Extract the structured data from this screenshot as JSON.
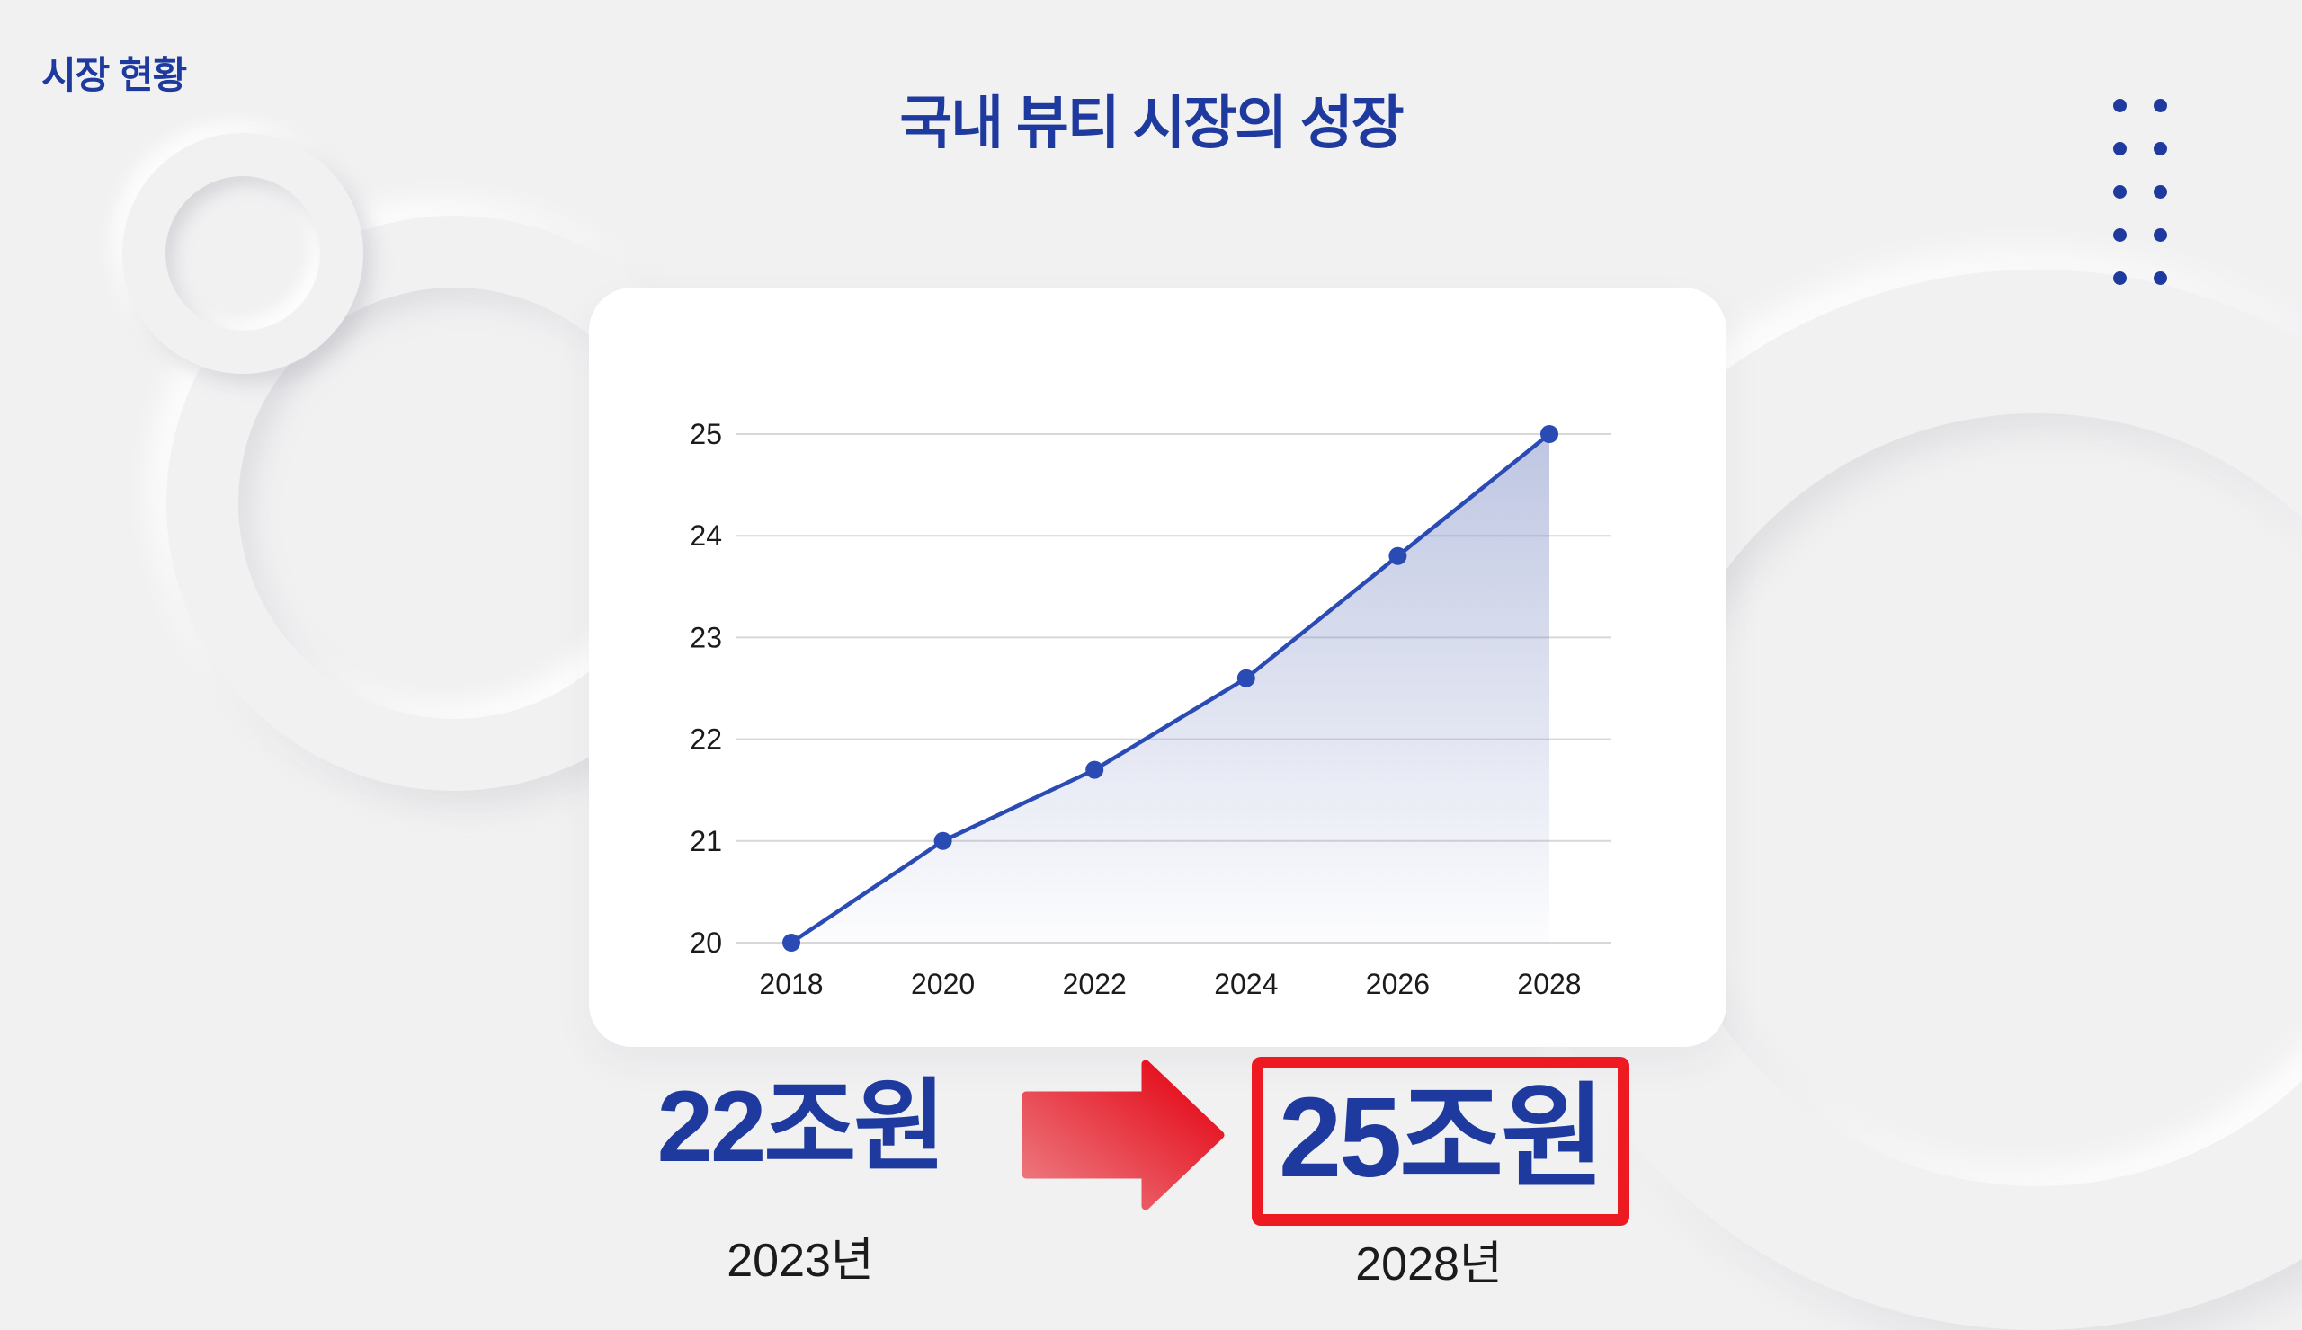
{
  "header": {
    "kicker": "시장 현황",
    "title": "국내 뷰티 시장의 성장"
  },
  "chart_data": {
    "type": "line",
    "x": [
      2018,
      2020,
      2022,
      2024,
      2026,
      2028
    ],
    "xticks": [
      "2018",
      "2020",
      "2022",
      "2024",
      "2026",
      "2028"
    ],
    "yticks": [
      20,
      21,
      22,
      23,
      24,
      25
    ],
    "ylim": [
      20,
      25
    ],
    "series": [
      {
        "name": "market-size",
        "values": [
          20,
          21,
          21.7,
          22.6,
          23.8,
          25
        ]
      }
    ],
    "grid": true,
    "legend": false,
    "area_fill": true,
    "title": "",
    "xlabel": "",
    "ylabel": ""
  },
  "summary": {
    "from_value": "22조원",
    "from_year": "2023년",
    "to_value": "25조원",
    "to_year": "2028년"
  },
  "icons": {
    "arrow": "arrow-right-icon",
    "dots": "dot-grid-decoration"
  },
  "colors": {
    "background": "#f1f1f2",
    "card": "#ffffff",
    "accent_blue": "#1e3a9e",
    "chart_line": "#2b4bb4",
    "chart_fill": "#7d8cc4",
    "grid": "#d7d7da",
    "text_dark": "#1b1b1d",
    "red": "#ee1a22",
    "arrow_light": "#ed8287",
    "arrow_dark": "#e5101f"
  }
}
